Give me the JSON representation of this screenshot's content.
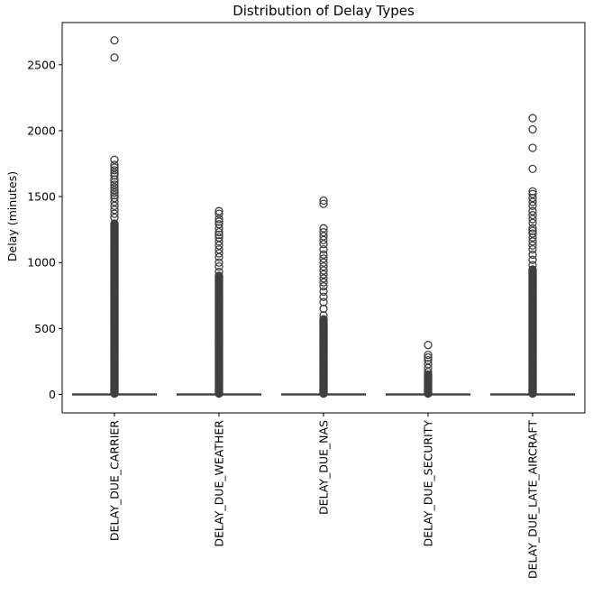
{
  "chart_data": {
    "type": "box",
    "title": "Distribution of Delay Types",
    "xlabel": "",
    "ylabel": "Delay (minutes)",
    "ylim": [
      -140,
      2820
    ],
    "yticks": [
      0,
      500,
      1000,
      1500,
      2000,
      2500
    ],
    "grid": false,
    "legend": "none",
    "colors": {
      "box_edge": "#3f3f3f",
      "box_fill": "#3f3f3f",
      "outlier": "#3f3f3f",
      "axis": "#000000"
    },
    "categories": [
      "DELAY_DUE_CARRIER",
      "DELAY_DUE_WEATHER",
      "DELAY_DUE_NAS",
      "DELAY_DUE_SECURITY",
      "DELAY_DUE_LATE_AIRCRAFT"
    ],
    "series": [
      {
        "category": "DELAY_DUE_CARRIER",
        "q1": 0,
        "median": 0,
        "q3": 0,
        "whisker_low": 0,
        "whisker_high": 0,
        "dense_outliers_max": 1300,
        "outliers": [
          1340,
          1370,
          1400,
          1430,
          1460,
          1490,
          1510,
          1530,
          1550,
          1570,
          1590,
          1610,
          1630,
          1660,
          1680,
          1700,
          1720,
          1740,
          1780,
          2555,
          2685
        ]
      },
      {
        "category": "DELAY_DUE_WEATHER",
        "q1": 0,
        "median": 0,
        "q3": 0,
        "whisker_low": 0,
        "whisker_high": 0,
        "dense_outliers_max": 900,
        "outliers": [
          930,
          970,
          1000,
          1040,
          1070,
          1100,
          1130,
          1160,
          1190,
          1210,
          1230,
          1260,
          1290,
          1310,
          1330,
          1370,
          1390
        ]
      },
      {
        "category": "DELAY_DUE_NAS",
        "q1": 0,
        "median": 0,
        "q3": 0,
        "whisker_low": 0,
        "whisker_high": 0,
        "dense_outliers_max": 570,
        "outliers": [
          600,
          650,
          700,
          740,
          780,
          820,
          850,
          880,
          910,
          940,
          970,
          1000,
          1030,
          1060,
          1100,
          1140,
          1170,
          1200,
          1230,
          1260,
          1445,
          1470
        ]
      },
      {
        "category": "DELAY_DUE_SECURITY",
        "q1": 0,
        "median": 0,
        "q3": 0,
        "whisker_low": 0,
        "whisker_high": 0,
        "dense_outliers_max": 150,
        "outliers": [
          170,
          200,
          230,
          260,
          280,
          300,
          375
        ]
      },
      {
        "category": "DELAY_DUE_LATE_AIRCRAFT",
        "q1": 0,
        "median": 0,
        "q3": 0,
        "whisker_low": 0,
        "whisker_high": 0,
        "dense_outliers_max": 950,
        "outliers": [
          980,
          1020,
          1060,
          1100,
          1130,
          1160,
          1190,
          1220,
          1240,
          1260,
          1300,
          1330,
          1360,
          1390,
          1430,
          1460,
          1490,
          1520,
          1540,
          1710,
          1870,
          2010,
          2095
        ]
      }
    ]
  }
}
